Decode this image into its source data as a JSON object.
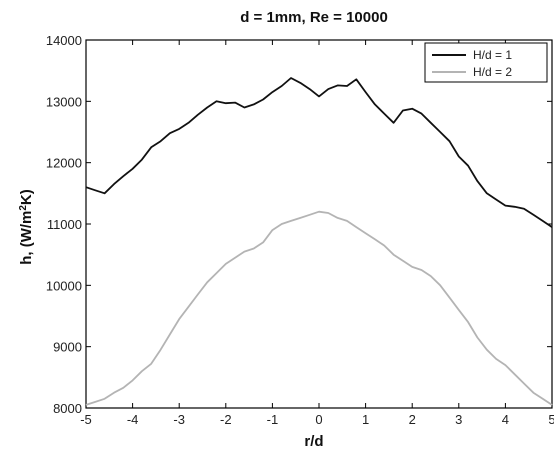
{
  "chart_data": {
    "type": "line",
    "title": "d = 1mm, Re = 10000",
    "xlabel": "r/d",
    "ylabel": "h, (W/m^2K)",
    "xlim": [
      -5,
      5
    ],
    "ylim": [
      8000,
      14000
    ],
    "x_ticks": [
      -5,
      -4,
      -3,
      -2,
      -1,
      0,
      1,
      2,
      3,
      4,
      5
    ],
    "y_ticks": [
      8000,
      9000,
      10000,
      11000,
      12000,
      13000,
      14000
    ],
    "grid": false,
    "legend_position": "top-right",
    "series": [
      {
        "name": "H/d = 1",
        "color": "#111111",
        "x": [
          -5.0,
          -4.8,
          -4.6,
          -4.4,
          -4.2,
          -4.0,
          -3.8,
          -3.6,
          -3.4,
          -3.2,
          -3.0,
          -2.8,
          -2.6,
          -2.4,
          -2.2,
          -2.0,
          -1.8,
          -1.6,
          -1.4,
          -1.2,
          -1.0,
          -0.8,
          -0.6,
          -0.4,
          -0.2,
          0.0,
          0.2,
          0.4,
          0.6,
          0.8,
          1.0,
          1.2,
          1.4,
          1.6,
          1.8,
          2.0,
          2.2,
          2.4,
          2.6,
          2.8,
          3.0,
          3.2,
          3.4,
          3.6,
          3.8,
          4.0,
          4.2,
          4.4,
          4.6,
          4.8,
          5.0
        ],
        "values": [
          11600,
          11550,
          11500,
          11650,
          11780,
          11900,
          12050,
          12250,
          12350,
          12480,
          12550,
          12650,
          12780,
          12900,
          13000,
          12970,
          12980,
          12900,
          12950,
          13030,
          13150,
          13250,
          13380,
          13300,
          13200,
          13080,
          13200,
          13260,
          13250,
          13360,
          13150,
          12950,
          12800,
          12650,
          12850,
          12880,
          12800,
          12650,
          12500,
          12350,
          12100,
          11950,
          11700,
          11500,
          11400,
          11300,
          11280,
          11250,
          11150,
          11050,
          10950
        ]
      },
      {
        "name": "H/d = 2",
        "color": "#b4b4b4",
        "x": [
          -5.0,
          -4.8,
          -4.6,
          -4.4,
          -4.2,
          -4.0,
          -3.8,
          -3.6,
          -3.4,
          -3.2,
          -3.0,
          -2.8,
          -2.6,
          -2.4,
          -2.2,
          -2.0,
          -1.8,
          -1.6,
          -1.4,
          -1.2,
          -1.0,
          -0.8,
          -0.6,
          -0.4,
          -0.2,
          0.0,
          0.2,
          0.4,
          0.6,
          0.8,
          1.0,
          1.2,
          1.4,
          1.6,
          1.8,
          2.0,
          2.2,
          2.4,
          2.6,
          2.8,
          3.0,
          3.2,
          3.4,
          3.6,
          3.8,
          4.0,
          4.2,
          4.4,
          4.6,
          4.8,
          5.0
        ],
        "values": [
          8050,
          8100,
          8150,
          8250,
          8330,
          8450,
          8600,
          8720,
          8950,
          9200,
          9450,
          9650,
          9850,
          10050,
          10200,
          10350,
          10450,
          10550,
          10600,
          10700,
          10900,
          11000,
          11050,
          11100,
          11150,
          11200,
          11180,
          11100,
          11050,
          10950,
          10850,
          10750,
          10650,
          10500,
          10400,
          10300,
          10250,
          10150,
          10000,
          9800,
          9600,
          9400,
          9150,
          8950,
          8800,
          8700,
          8550,
          8400,
          8250,
          8150,
          8050
        ]
      }
    ]
  }
}
